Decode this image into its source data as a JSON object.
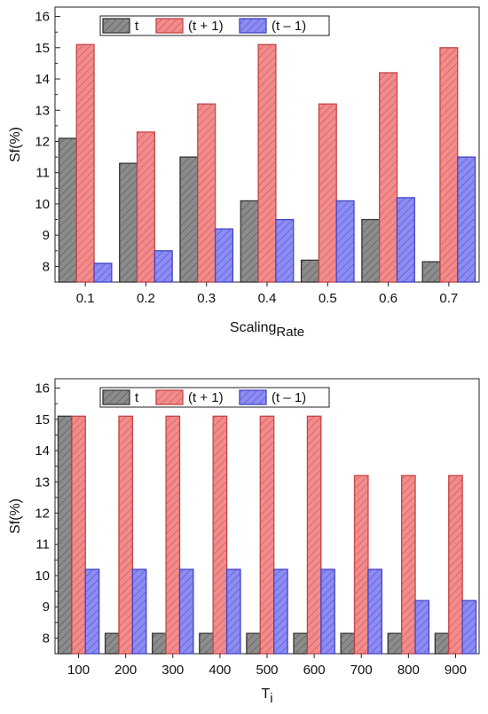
{
  "colors": {
    "t": "#8c8c8c",
    "t_plus_1": "#f28c8c",
    "t_minus_1": "#8c8cf2",
    "t_stroke": "#333333",
    "t_plus_1_stroke": "#c44444",
    "t_minus_1_stroke": "#4444c4"
  },
  "chart_data": [
    {
      "type": "bar",
      "xlabel": "Scaling",
      "xlabel_subscript": "Rate",
      "ylabel": "Sf(%)",
      "ylim": [
        7.5,
        16.3
      ],
      "yticks": [
        "8",
        "9",
        "10",
        "11",
        "12",
        "13",
        "14",
        "15",
        "16"
      ],
      "grid": false,
      "legend_position": "top-left",
      "categories": [
        "0.1",
        "0.2",
        "0.3",
        "0.4",
        "0.5",
        "0.6",
        "0.7"
      ],
      "series": [
        {
          "name": "t",
          "values": [
            12.1,
            11.3,
            11.5,
            10.1,
            8.2,
            9.5,
            8.15
          ]
        },
        {
          "name": "(t + 1)",
          "values": [
            15.1,
            12.3,
            13.2,
            15.1,
            13.2,
            14.2,
            15.0
          ]
        },
        {
          "name": "(t – 1)",
          "values": [
            8.1,
            8.5,
            9.2,
            9.5,
            10.1,
            10.2,
            11.5
          ]
        }
      ]
    },
    {
      "type": "bar",
      "xlabel": "T",
      "xlabel_subscript": "i",
      "ylabel": "Sf(%)",
      "ylim": [
        7.5,
        16.3
      ],
      "yticks": [
        "8",
        "9",
        "10",
        "11",
        "12",
        "13",
        "14",
        "15",
        "16"
      ],
      "grid": false,
      "legend_position": "top-left",
      "categories": [
        "100",
        "200",
        "300",
        "400",
        "500",
        "600",
        "700",
        "800",
        "900"
      ],
      "series": [
        {
          "name": "t",
          "values": [
            15.1,
            8.15,
            8.15,
            8.15,
            8.15,
            8.15,
            8.15,
            8.15,
            8.15
          ]
        },
        {
          "name": "(t + 1)",
          "values": [
            15.1,
            15.1,
            15.1,
            15.1,
            15.1,
            15.1,
            13.2,
            13.2,
            13.2
          ]
        },
        {
          "name": "(t – 1)",
          "values": [
            10.2,
            10.2,
            10.2,
            10.2,
            10.2,
            10.2,
            10.2,
            9.2,
            9.2
          ]
        }
      ]
    }
  ]
}
